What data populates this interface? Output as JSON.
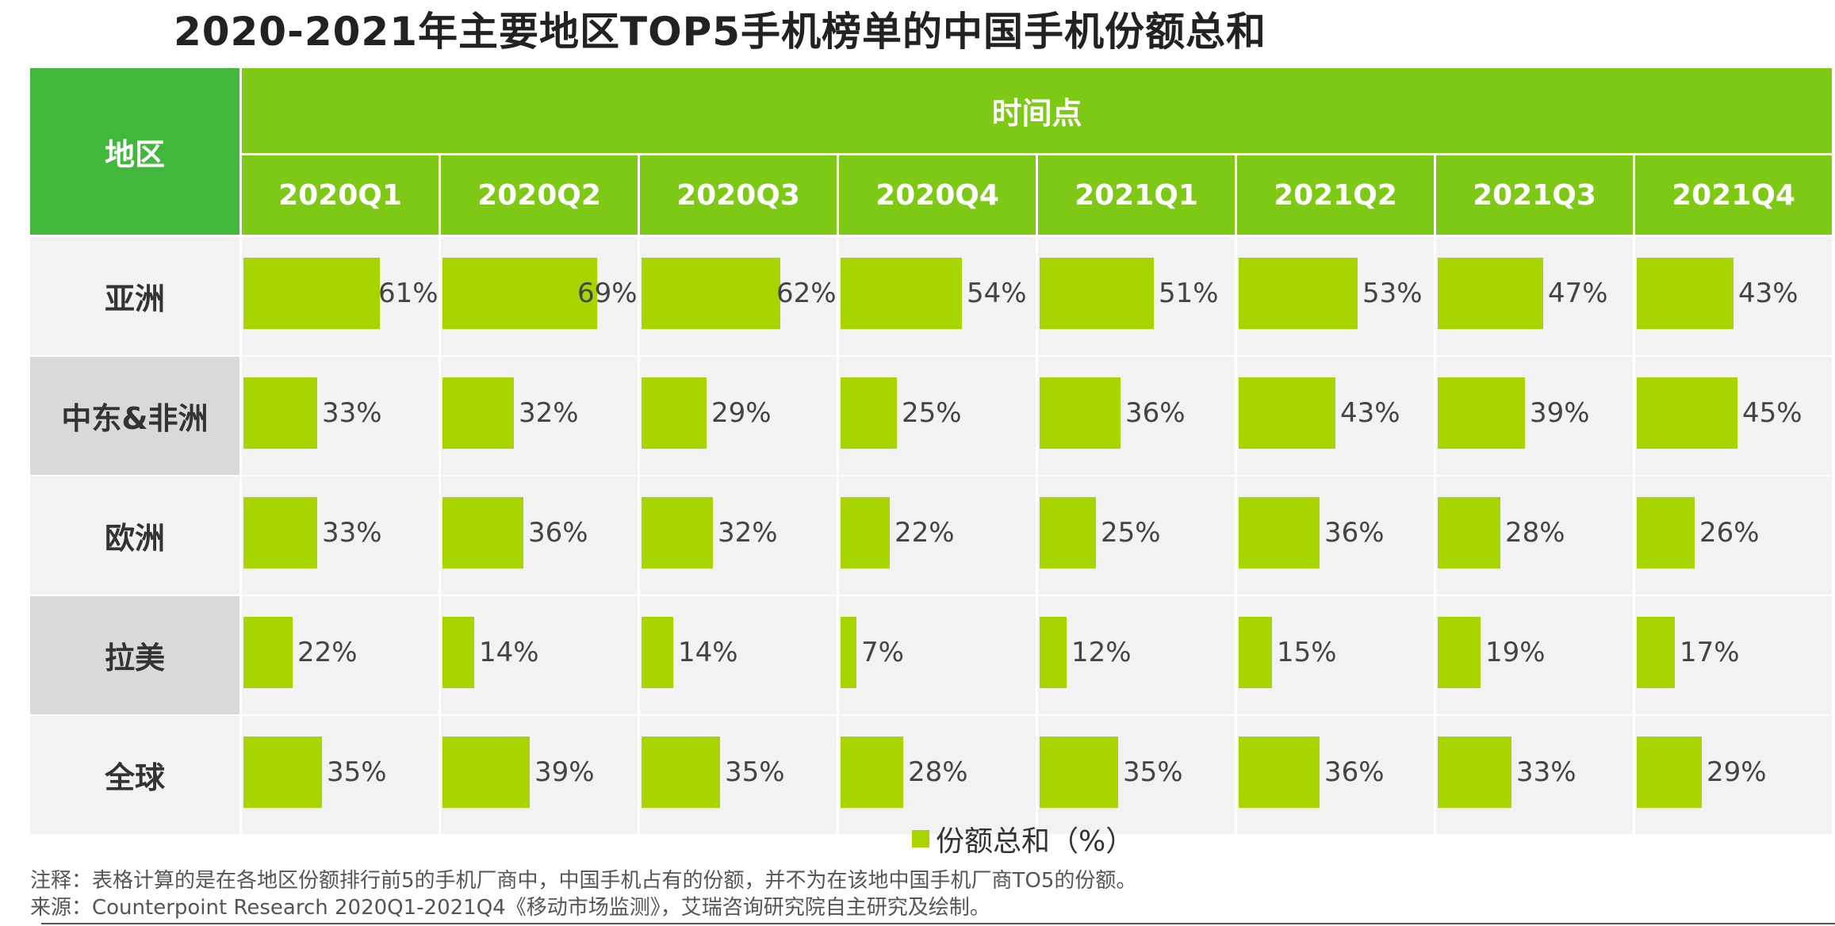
{
  "title": "2020-2021年主要地区TOP5手机榜单的中国手机份额总和",
  "header": {
    "region_label": "地区",
    "time_label": "时间点"
  },
  "colors": {
    "bar": "#a8d400",
    "header_region": "#41b83b",
    "header_time": "#7dc915"
  },
  "chart_data": {
    "type": "table",
    "title": "2020-2021年主要地区TOP5手机榜单的中国手机份额总和",
    "unit": "%",
    "quarters": [
      "2020Q1",
      "2020Q2",
      "2020Q3",
      "2020Q4",
      "2021Q1",
      "2021Q2",
      "2021Q3",
      "2021Q4"
    ],
    "regions": [
      {
        "name": "亚洲",
        "values": [
          61,
          69,
          62,
          54,
          51,
          53,
          47,
          43
        ],
        "labels": [
          "61%",
          "69%",
          "62%",
          "54%",
          "51%",
          "53%",
          "47%",
          "43%"
        ]
      },
      {
        "name": "中东&非洲",
        "values": [
          33,
          32,
          29,
          25,
          36,
          43,
          39,
          45
        ],
        "labels": [
          "33%",
          "32%",
          "29%",
          "25%",
          "36%",
          "43%",
          "39%",
          "45%"
        ]
      },
      {
        "name": "欧洲",
        "values": [
          33,
          36,
          32,
          22,
          25,
          36,
          28,
          26
        ],
        "labels": [
          "33%",
          "36%",
          "32%",
          "22%",
          "25%",
          "36%",
          "28%",
          "26%"
        ]
      },
      {
        "name": "拉美",
        "values": [
          22,
          14,
          14,
          7,
          12,
          15,
          19,
          17
        ],
        "labels": [
          "22%",
          "14%",
          "14%",
          "7%",
          "12%",
          "15%",
          "19%",
          "17%"
        ]
      },
      {
        "name": "全球",
        "values": [
          35,
          39,
          35,
          28,
          35,
          36,
          33,
          29
        ],
        "labels": [
          "35%",
          "39%",
          "35%",
          "28%",
          "35%",
          "36%",
          "33%",
          "29%"
        ]
      }
    ],
    "legend": "份额总和（%）"
  },
  "notes": {
    "note": "注释：表格计算的是在各地区份额排行前5的手机厂商中，中国手机占有的份额，并不为在该地中国手机厂商TO5的份额。",
    "source": "来源：Counterpoint Research 2020Q1-2021Q4《移动市场监测》，艾瑞咨询研究院自主研究及绘制。"
  }
}
